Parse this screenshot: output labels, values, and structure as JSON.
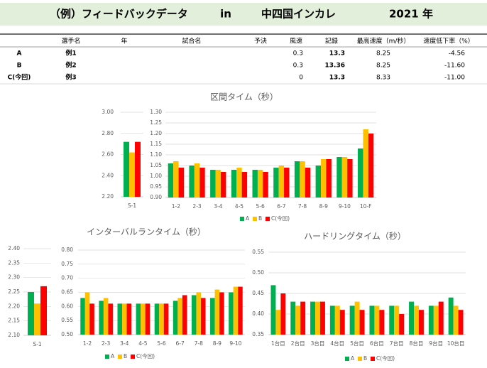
{
  "header": {
    "title": "（例）フィードバックデータ",
    "in": "in",
    "event": "中四国インカレ",
    "year": "2021 年"
  },
  "table": {
    "columns": [
      "選手名",
      "年",
      "試合名",
      "予決",
      "風速",
      "記録",
      "最高速度（m/秒）",
      "速度低下率（%）"
    ],
    "rows": [
      {
        "label": "A",
        "name": "例1",
        "wind": "0.3",
        "record": "13.3",
        "speed": "8.25",
        "drop": "-4.56",
        "color": "#00b050",
        "record_color": "#000000"
      },
      {
        "label": "B",
        "name": "例2",
        "wind": "0.3",
        "record": "13.36",
        "speed": "8.25",
        "drop": "-11.60",
        "color": "#ffc000",
        "record_color": "#000000"
      },
      {
        "label": "C(今回)",
        "name": "例3",
        "wind": "0",
        "record": "13.3",
        "speed": "8.33",
        "drop": "-11.00",
        "color": "#ff0000",
        "record_color": "#ff0000"
      }
    ]
  },
  "chart_data": [
    {
      "type": "bar",
      "title": "区間タイム（秒）",
      "grid": true,
      "series": [
        {
          "name": "A",
          "color": "#00b050"
        },
        {
          "name": "B",
          "color": "#ffc000"
        },
        {
          "name": "C(今回)",
          "color": "#ff0000"
        }
      ],
      "panels": [
        {
          "categories": [
            "S-1"
          ],
          "ylim": [
            2.2,
            3.0
          ],
          "yticks": [
            {
              "value": 2.2,
              "label": "2.20"
            },
            {
              "value": 2.4,
              "label": "2.40"
            },
            {
              "value": 2.6,
              "label": "2.60"
            },
            {
              "value": 2.8,
              "label": "2.80"
            },
            {
              "value": 3.0,
              "label": "3.00"
            }
          ],
          "values": [
            [
              2.72
            ],
            [
              2.62
            ],
            [
              2.72
            ]
          ]
        },
        {
          "categories": [
            "1-2",
            "2-3",
            "3-4",
            "4-5",
            "5-6",
            "6-7",
            "7-8",
            "8-9",
            "9-10",
            "10-F"
          ],
          "ylim": [
            0.9,
            1.3
          ],
          "yticks": [
            {
              "value": 0.9,
              "label": "0.90"
            },
            0.95,
            {
              "value": 1.0,
              "label": "1.00"
            },
            1.05,
            {
              "value": 1.1,
              "label": "1.10"
            },
            1.15,
            {
              "value": 1.2,
              "label": "1.20"
            },
            1.25,
            {
              "value": 1.3,
              "label": "1.30"
            }
          ],
          "values": [
            [
              1.06,
              1.05,
              1.03,
              1.03,
              1.03,
              1.04,
              1.07,
              1.05,
              1.09,
              1.13
            ],
            [
              1.07,
              1.06,
              1.03,
              1.04,
              1.03,
              1.05,
              1.07,
              1.08,
              1.09,
              1.22
            ],
            [
              1.04,
              1.04,
              1.02,
              1.02,
              1.02,
              1.04,
              1.04,
              1.08,
              1.08,
              1.2
            ]
          ]
        }
      ]
    },
    {
      "type": "bar",
      "title": "インターバルランタイム（秒）",
      "grid": true,
      "series": [
        {
          "name": "A",
          "color": "#00b050"
        },
        {
          "name": "B",
          "color": "#ffc000"
        },
        {
          "name": "C(今回)",
          "color": "#ff0000"
        }
      ],
      "panels": [
        {
          "categories": [
            "S-1"
          ],
          "ylim": [
            2.1,
            2.4
          ],
          "yticks": [
            {
              "value": 2.1,
              "label": "2.10"
            },
            2.15,
            {
              "value": 2.2,
              "label": "2.20"
            },
            2.25,
            {
              "value": 2.3,
              "label": "2.30"
            },
            2.35,
            {
              "value": 2.4,
              "label": "2.40"
            }
          ],
          "values": [
            [
              2.25
            ],
            [
              2.21
            ],
            [
              2.27
            ]
          ]
        },
        {
          "categories": [
            "1-2",
            "2-3",
            "3-4",
            "4-5",
            "5-6",
            "6-7",
            "7-8",
            "8-9",
            "9-10"
          ],
          "ylim": [
            0.5,
            0.8
          ],
          "yticks": [
            {
              "value": 0.5,
              "label": "0.50"
            },
            0.55,
            {
              "value": 0.6,
              "label": "0.60"
            },
            0.65,
            {
              "value": 0.7,
              "label": "0.70"
            },
            0.75,
            {
              "value": 0.8,
              "label": "0.80"
            }
          ],
          "values": [
            [
              0.63,
              0.62,
              0.61,
              0.61,
              0.61,
              0.62,
              0.64,
              0.63,
              0.65
            ],
            [
              0.65,
              0.63,
              0.61,
              0.61,
              0.61,
              0.63,
              0.65,
              0.66,
              0.67
            ],
            [
              0.61,
              0.61,
              0.61,
              0.61,
              0.61,
              0.64,
              0.63,
              0.65,
              0.67
            ]
          ]
        }
      ]
    },
    {
      "type": "bar",
      "title": "ハードリングタイム（秒）",
      "grid": true,
      "series": [
        {
          "name": "A",
          "color": "#00b050"
        },
        {
          "name": "B",
          "color": "#ffc000"
        },
        {
          "name": "C(今回)",
          "color": "#ff0000"
        }
      ],
      "panels": [
        {
          "categories": [
            "1台目",
            "2台目",
            "3台目",
            "4台目",
            "5台目",
            "6台目",
            "7台目",
            "8台目",
            "9台目",
            "10台目"
          ],
          "ylim": [
            0.35,
            0.55
          ],
          "yticks": [
            0.35,
            {
              "value": 0.4,
              "label": "0.40"
            },
            0.45,
            {
              "value": 0.5,
              "label": "0.50"
            },
            0.55
          ],
          "values": [
            [
              0.47,
              0.43,
              0.43,
              0.42,
              0.42,
              0.42,
              0.42,
              0.43,
              0.42,
              0.44
            ],
            [
              0.41,
              0.42,
              0.43,
              0.42,
              0.43,
              0.42,
              0.42,
              0.42,
              0.42,
              0.42
            ],
            [
              0.45,
              0.43,
              0.43,
              0.41,
              0.41,
              0.41,
              0.4,
              0.41,
              0.43,
              0.41
            ]
          ]
        }
      ]
    }
  ]
}
